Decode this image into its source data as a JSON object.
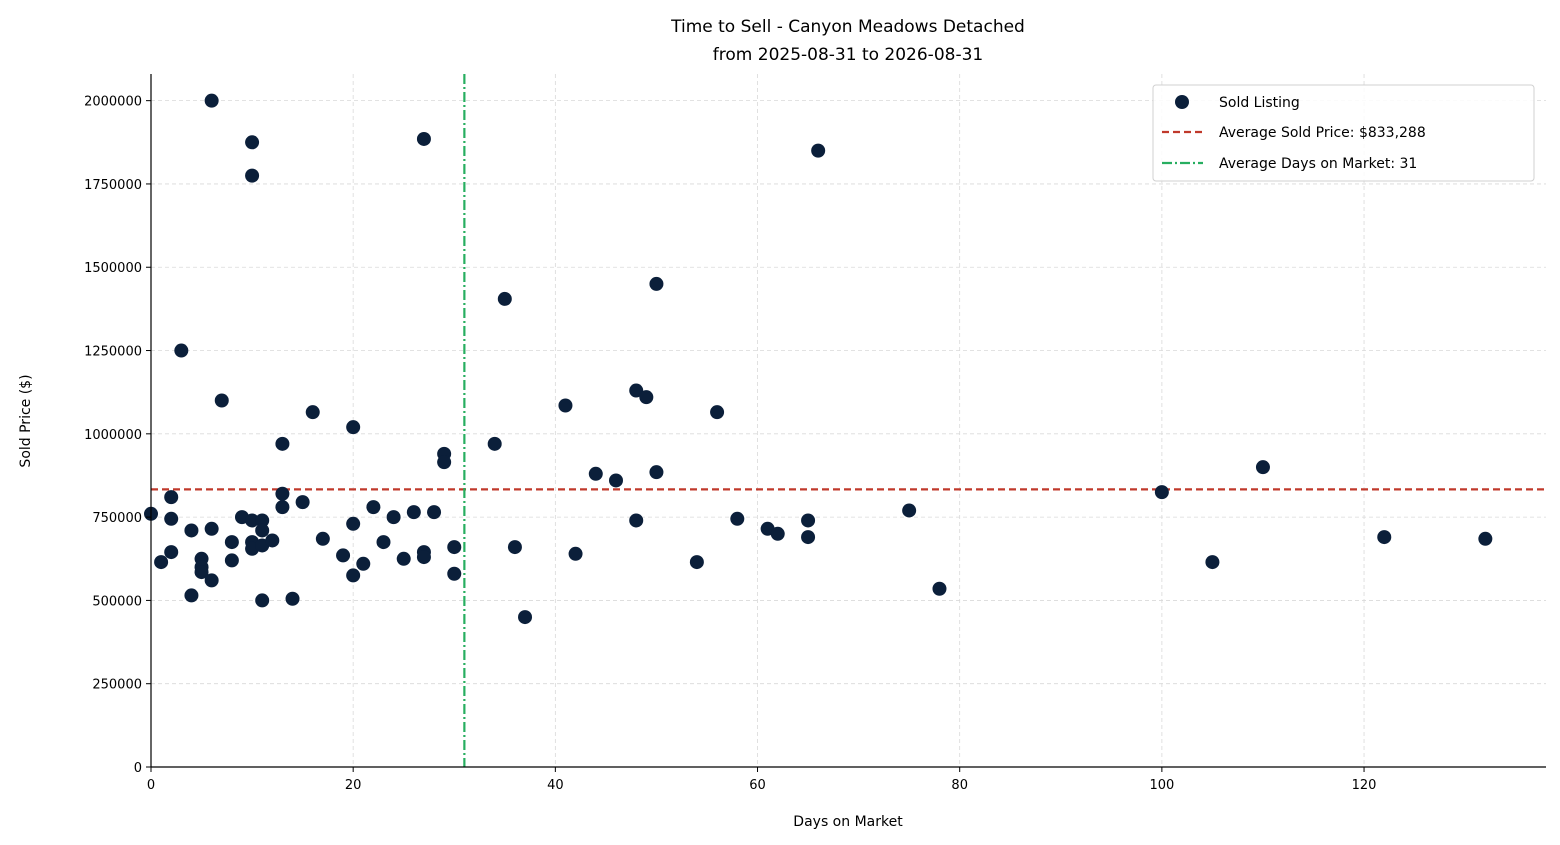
{
  "chart_data": {
    "type": "scatter",
    "title_line1": "Time to Sell - Canyon Meadows Detached",
    "title_line2": "from 2025-08-31 to 2026-08-31",
    "xlabel": "Days on Market",
    "ylabel": "Sold Price ($)",
    "xlim": [
      0,
      138
    ],
    "ylim": [
      0,
      2080000
    ],
    "x_ticks": [
      0,
      20,
      40,
      60,
      80,
      100,
      120
    ],
    "y_ticks": [
      0,
      250000,
      500000,
      750000,
      1000000,
      1250000,
      1500000,
      1750000,
      2000000
    ],
    "grid": true,
    "legend_position": "top-right",
    "colors": {
      "points": "#0b1f3a",
      "avg_price_line": "#c0392b",
      "avg_days_line": "#27ae60"
    },
    "legend": {
      "points_label": "Sold Listing",
      "avg_price_label": "Average Sold Price: $833,288",
      "avg_days_label": "Average Days on Market: 31"
    },
    "average_sold_price": 833288,
    "average_days_on_market": 31,
    "series": [
      {
        "name": "Sold Listing",
        "points": [
          [
            0,
            760000
          ],
          [
            1,
            615000
          ],
          [
            2,
            810000
          ],
          [
            2,
            745000
          ],
          [
            2,
            645000
          ],
          [
            3,
            1250000
          ],
          [
            4,
            710000
          ],
          [
            4,
            515000
          ],
          [
            5,
            625000
          ],
          [
            5,
            600000
          ],
          [
            5,
            585000
          ],
          [
            6,
            2000000
          ],
          [
            6,
            715000
          ],
          [
            6,
            560000
          ],
          [
            7,
            1100000
          ],
          [
            8,
            675000
          ],
          [
            8,
            620000
          ],
          [
            9,
            750000
          ],
          [
            10,
            1875000
          ],
          [
            10,
            1775000
          ],
          [
            10,
            740000
          ],
          [
            10,
            675000
          ],
          [
            10,
            655000
          ],
          [
            11,
            740000
          ],
          [
            11,
            710000
          ],
          [
            11,
            665000
          ],
          [
            11,
            500000
          ],
          [
            12,
            680000
          ],
          [
            13,
            970000
          ],
          [
            13,
            820000
          ],
          [
            13,
            780000
          ],
          [
            14,
            505000
          ],
          [
            15,
            795000
          ],
          [
            16,
            1065000
          ],
          [
            17,
            685000
          ],
          [
            19,
            635000
          ],
          [
            20,
            1020000
          ],
          [
            20,
            730000
          ],
          [
            20,
            575000
          ],
          [
            21,
            610000
          ],
          [
            22,
            780000
          ],
          [
            23,
            675000
          ],
          [
            24,
            750000
          ],
          [
            25,
            625000
          ],
          [
            26,
            765000
          ],
          [
            27,
            1885000
          ],
          [
            27,
            645000
          ],
          [
            27,
            630000
          ],
          [
            28,
            765000
          ],
          [
            29,
            940000
          ],
          [
            29,
            915000
          ],
          [
            30,
            660000
          ],
          [
            30,
            580000
          ],
          [
            34,
            970000
          ],
          [
            35,
            1405000
          ],
          [
            36,
            660000
          ],
          [
            37,
            450000
          ],
          [
            41,
            1085000
          ],
          [
            42,
            640000
          ],
          [
            44,
            880000
          ],
          [
            46,
            860000
          ],
          [
            48,
            1130000
          ],
          [
            48,
            740000
          ],
          [
            49,
            1110000
          ],
          [
            50,
            1450000
          ],
          [
            50,
            885000
          ],
          [
            54,
            615000
          ],
          [
            56,
            1065000
          ],
          [
            58,
            745000
          ],
          [
            61,
            715000
          ],
          [
            62,
            700000
          ],
          [
            65,
            740000
          ],
          [
            65,
            690000
          ],
          [
            66,
            1850000
          ],
          [
            75,
            770000
          ],
          [
            78,
            535000
          ],
          [
            100,
            825000
          ],
          [
            105,
            615000
          ],
          [
            110,
            900000
          ],
          [
            122,
            690000
          ],
          [
            132,
            685000
          ]
        ]
      }
    ]
  }
}
